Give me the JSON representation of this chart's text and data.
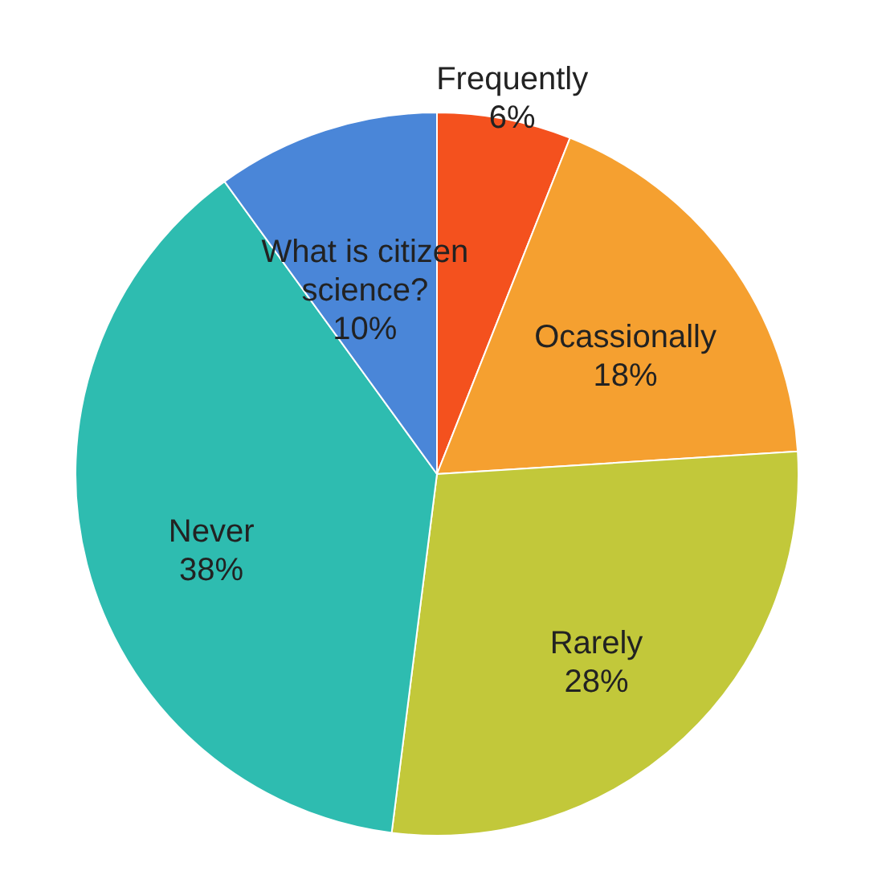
{
  "chart_data": {
    "type": "pie",
    "categories": [
      "Frequently",
      "Ocassionally",
      "Rarely",
      "Never",
      "What is citizen science?"
    ],
    "values": [
      6,
      18,
      28,
      38,
      10
    ],
    "colors": [
      "#f4511e",
      "#f5a030",
      "#c2c83a",
      "#2ebcb0",
      "#4a86d8"
    ],
    "value_labels": [
      "6%",
      "18%",
      "28%",
      "38%",
      "10%"
    ],
    "legend": false
  }
}
